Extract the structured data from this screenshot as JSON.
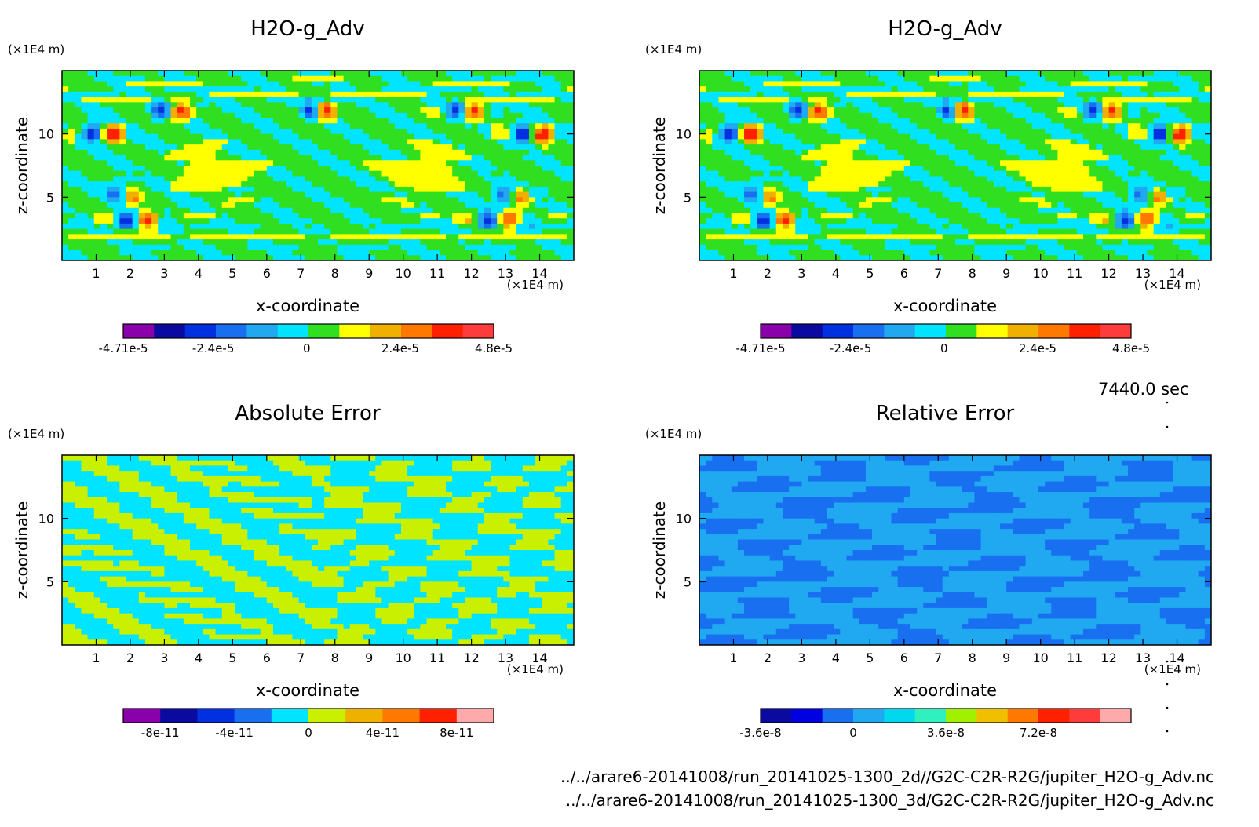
{
  "page": {
    "time_label": "7440.0 sec",
    "footer": [
      "../../arare6-20141008/run_20141025-1300_2d//G2C-C2R-R2G/jupiter_H2O-g_Adv.nc",
      "../../arare6-20141008/run_20141025-1300_3d/G2C-C2R-R2G/jupiter_H2O-g_Adv.nc"
    ]
  },
  "chart_data": [
    {
      "type": "heatmap",
      "title": "H2O-g_Adv",
      "xlabel": "x-coordinate",
      "ylabel": "z-coordinate",
      "x_unit": "(×1E4 m)",
      "y_unit": "(×1E4 m)",
      "xlim": [
        0,
        15
      ],
      "ylim": [
        0,
        15
      ],
      "xticks": [
        1,
        2,
        3,
        4,
        5,
        6,
        7,
        8,
        9,
        10,
        11,
        12,
        13,
        14
      ],
      "yticks": [
        5,
        10
      ],
      "pattern": "field",
      "colorbar": {
        "colors": [
          "#8a00aa",
          "#0a0aa0",
          "#0030e0",
          "#1870f0",
          "#20a8f0",
          "#00e4ff",
          "#30e020",
          "#ffff00",
          "#f0b000",
          "#ff7800",
          "#ff2000",
          "#ff3c3c"
        ],
        "labels": [
          {
            "value": -4.71e-05,
            "text": "-4.71e-5"
          },
          {
            "value": -2.4e-05,
            "text": "-2.4e-5"
          },
          {
            "value": 0,
            "text": "0"
          },
          {
            "value": 2.4e-05,
            "text": "2.4e-5"
          },
          {
            "value": 4.8e-05,
            "text": "4.8e-5"
          }
        ],
        "range": [
          -4.71e-05,
          4.8e-05
        ]
      }
    },
    {
      "type": "heatmap",
      "title": "H2O-g_Adv",
      "xlabel": "x-coordinate",
      "ylabel": "z-coordinate",
      "x_unit": "(×1E4 m)",
      "y_unit": "(×1E4 m)",
      "xlim": [
        0,
        15
      ],
      "ylim": [
        0,
        15
      ],
      "xticks": [
        1,
        2,
        3,
        4,
        5,
        6,
        7,
        8,
        9,
        10,
        11,
        12,
        13,
        14
      ],
      "yticks": [
        5,
        10
      ],
      "pattern": "field",
      "colorbar": {
        "colors": [
          "#8a00aa",
          "#0a0aa0",
          "#0030e0",
          "#1870f0",
          "#20a8f0",
          "#00e4ff",
          "#30e020",
          "#ffff00",
          "#f0b000",
          "#ff7800",
          "#ff2000",
          "#ff3c3c"
        ],
        "labels": [
          {
            "value": -4.71e-05,
            "text": "-4.71e-5"
          },
          {
            "value": -2.4e-05,
            "text": "-2.4e-5"
          },
          {
            "value": 0,
            "text": "0"
          },
          {
            "value": 2.4e-05,
            "text": "2.4e-5"
          },
          {
            "value": 4.8e-05,
            "text": "4.8e-5"
          }
        ],
        "range": [
          -4.71e-05,
          4.8e-05
        ]
      }
    },
    {
      "type": "heatmap",
      "title": "Absolute Error",
      "xlabel": "x-coordinate",
      "ylabel": "z-coordinate",
      "x_unit": "(×1E4 m)",
      "y_unit": "(×1E4 m)",
      "xlim": [
        0,
        15
      ],
      "ylim": [
        0,
        15
      ],
      "xticks": [
        1,
        2,
        3,
        4,
        5,
        6,
        7,
        8,
        9,
        10,
        11,
        12,
        13,
        14
      ],
      "yticks": [
        5,
        10
      ],
      "pattern": "absolute",
      "colorbar": {
        "colors": [
          "#8a00aa",
          "#0a0aa0",
          "#0030e0",
          "#1870f0",
          "#00e4ff",
          "#c8f000",
          "#f0b000",
          "#ff7800",
          "#ff2000",
          "#ffaaaa"
        ],
        "labels": [
          {
            "value": -8e-11,
            "text": "-8e-11"
          },
          {
            "value": -4e-11,
            "text": "-4e-11"
          },
          {
            "value": 0,
            "text": "0"
          },
          {
            "value": 4e-11,
            "text": "4e-11"
          },
          {
            "value": 8e-11,
            "text": "8e-11"
          }
        ],
        "range": [
          -1e-10,
          1e-10
        ]
      }
    },
    {
      "type": "heatmap",
      "title": "Relative Error",
      "xlabel": "x-coordinate",
      "ylabel": "z-coordinate",
      "x_unit": "(×1E4 m)",
      "y_unit": "(×1E4 m)",
      "xlim": [
        0,
        15
      ],
      "ylim": [
        0,
        15
      ],
      "xticks": [
        1,
        2,
        3,
        4,
        5,
        6,
        7,
        8,
        9,
        10,
        11,
        12,
        13,
        14
      ],
      "yticks": [
        5,
        10
      ],
      "pattern": "relative",
      "colorbar": {
        "colors": [
          "#0a0aa0",
          "#0000e0",
          "#1870f0",
          "#20a8f0",
          "#00d8f0",
          "#30f0c0",
          "#a0f000",
          "#f0c000",
          "#ff7800",
          "#ff2000",
          "#ff3c3c",
          "#ffaaaa"
        ],
        "labels": [
          {
            "value": -3.6e-08,
            "text": "-3.6e-8"
          },
          {
            "value": 0,
            "text": "0"
          },
          {
            "value": 3.6e-08,
            "text": "3.6e-8"
          },
          {
            "value": 7.2e-08,
            "text": "7.2e-8"
          }
        ],
        "range": [
          -3.6e-08,
          1.08e-07
        ]
      }
    }
  ]
}
